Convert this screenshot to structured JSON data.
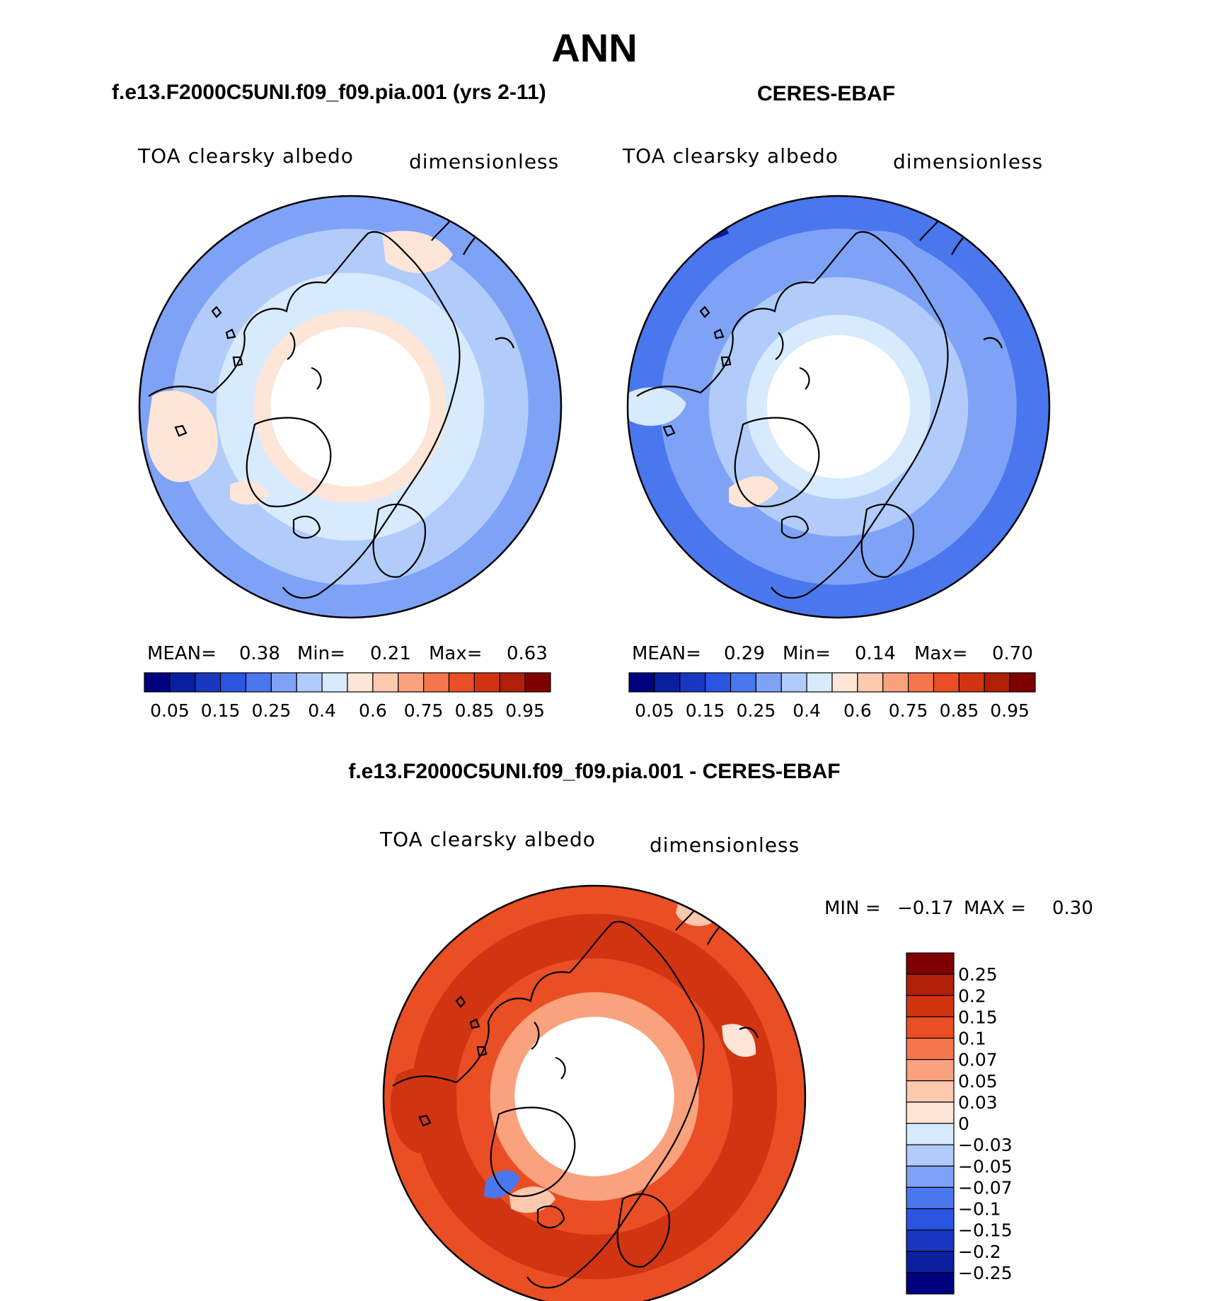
{
  "figure": {
    "title": "ANN"
  },
  "chart_data": [
    {
      "type": "heatmap",
      "projection": "north-polar-stereographic",
      "case_title": "f.e13.F2000C5UNI.f09_f09.pia.001 (yrs 2-11)",
      "variable": "TOA clearsky albedo",
      "units": "dimensionless",
      "stats": {
        "mean_label": "MEAN=",
        "mean": "0.38",
        "min_label": "Min=",
        "min": "0.21",
        "max_label": "Max=",
        "max": "0.63"
      },
      "colorbar": {
        "orientation": "horizontal",
        "levels": [
          0.05,
          0.1,
          0.15,
          0.2,
          0.25,
          0.3,
          0.35,
          0.4,
          0.5,
          0.6,
          0.7,
          0.75,
          0.8,
          0.85,
          0.9,
          0.95
        ],
        "tick_labels": [
          "0.05",
          "0.15",
          "0.25",
          "0.4",
          "0.6",
          "0.75",
          "0.85",
          "0.95"
        ],
        "colors": [
          "#00007f",
          "#0a1ea0",
          "#1836c0",
          "#2a55e0",
          "#4a77ee",
          "#7ea2f6",
          "#b1ccfb",
          "#d8eafd",
          "#fde5d8",
          "#fcc8ae",
          "#f9a27d",
          "#f4764c",
          "#ea4e24",
          "#d23412",
          "#b01f08",
          "#7f0000"
        ]
      },
      "rings": [
        {
          "from_lat": 40,
          "to_lat": 47,
          "level": "0.25"
        },
        {
          "from_lat": 47,
          "to_lat": 57,
          "level": "0.3"
        },
        {
          "from_lat": 57,
          "to_lat": 66,
          "level": "0.35"
        },
        {
          "from_lat": 66,
          "to_lat": 70,
          "level": "0.4"
        },
        {
          "from_lat": 70,
          "to_lat": 90,
          "level": "missing"
        }
      ]
    },
    {
      "type": "heatmap",
      "projection": "north-polar-stereographic",
      "case_title": "CERES-EBAF",
      "variable": "TOA clearsky albedo",
      "units": "dimensionless",
      "stats": {
        "mean_label": "MEAN=",
        "mean": "0.29",
        "min_label": "Min=",
        "min": "0.14",
        "max_label": "Max=",
        "max": "0.70"
      },
      "colorbar": {
        "orientation": "horizontal",
        "levels": [
          0.05,
          0.1,
          0.15,
          0.2,
          0.25,
          0.3,
          0.35,
          0.4,
          0.5,
          0.6,
          0.7,
          0.75,
          0.8,
          0.85,
          0.9,
          0.95
        ],
        "tick_labels": [
          "0.05",
          "0.15",
          "0.25",
          "0.4",
          "0.6",
          "0.75",
          "0.85",
          "0.95"
        ],
        "colors": [
          "#00007f",
          "#0a1ea0",
          "#1836c0",
          "#2a55e0",
          "#4a77ee",
          "#7ea2f6",
          "#b1ccfb",
          "#d8eafd",
          "#fde5d8",
          "#fcc8ae",
          "#f9a27d",
          "#f4764c",
          "#ea4e24",
          "#d23412",
          "#b01f08",
          "#7f0000"
        ]
      },
      "rings": [
        {
          "from_lat": 40,
          "to_lat": 47,
          "level": "0.2"
        },
        {
          "from_lat": 47,
          "to_lat": 58,
          "level": "0.25"
        },
        {
          "from_lat": 58,
          "to_lat": 67,
          "level": "0.3"
        },
        {
          "from_lat": 67,
          "to_lat": 72,
          "level": "0.35"
        },
        {
          "from_lat": 72,
          "to_lat": 90,
          "level": "missing"
        }
      ]
    },
    {
      "type": "heatmap",
      "projection": "north-polar-stereographic",
      "case_title": "f.e13.F2000C5UNI.f09_f09.pia.001 - CERES-EBAF",
      "variable": "TOA clearsky albedo",
      "units": "dimensionless",
      "stats": {
        "min_label": "MIN =",
        "min": "−0.17",
        "max_label": "MAX =",
        "max": "0.30"
      },
      "colorbar": {
        "orientation": "vertical",
        "tick_labels": [
          "0.25",
          "0.2",
          "0.15",
          "0.1",
          "0.07",
          "0.05",
          "0.03",
          "0",
          "−0.03",
          "−0.05",
          "−0.07",
          "−0.1",
          "−0.15",
          "−0.2",
          "−0.25"
        ],
        "colors": [
          "#7f0000",
          "#b01f08",
          "#d23412",
          "#ea4e24",
          "#f4764c",
          "#f9a27d",
          "#fcc8ae",
          "#fde5d8",
          "#d8eafd",
          "#b1ccfb",
          "#7ea2f6",
          "#4a77ee",
          "#2a55e0",
          "#1836c0",
          "#0a1ea0",
          "#00007f"
        ]
      },
      "rings": [
        {
          "from_lat": 40,
          "to_lat": 46,
          "level": "0.1"
        },
        {
          "from_lat": 46,
          "to_lat": 56,
          "level": "0.15"
        },
        {
          "from_lat": 56,
          "to_lat": 64,
          "level": "0.1"
        },
        {
          "from_lat": 64,
          "to_lat": 70,
          "level": "0.05"
        },
        {
          "from_lat": 70,
          "to_lat": 90,
          "level": "missing"
        }
      ]
    }
  ]
}
